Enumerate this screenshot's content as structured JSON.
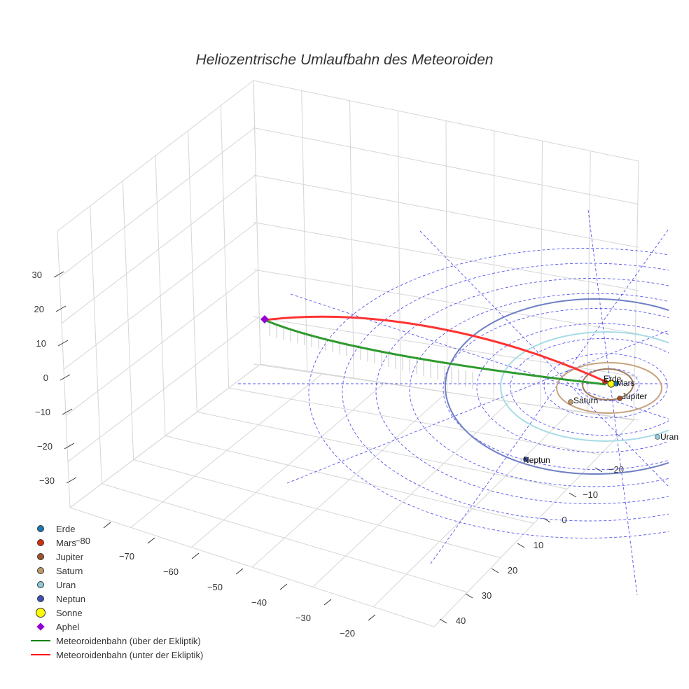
{
  "chart_data": {
    "type": "scatter3d",
    "title": "Heliozentrische Umlaufbahn des Meteoroiden",
    "axes": {
      "x": {
        "ticks": [
          "−80",
          "−70",
          "−60",
          "−50",
          "−40",
          "−30",
          "−20"
        ]
      },
      "y": {
        "ticks": [
          "−20",
          "−10",
          "0",
          "10",
          "20",
          "30",
          "40"
        ]
      },
      "z": {
        "ticks": [
          "30",
          "20",
          "10",
          "0",
          "−10",
          "−20",
          "−30"
        ]
      }
    },
    "planet_labels": [
      "Mars",
      "Erde",
      "Jupiter",
      "Saturn",
      "Uran",
      "Neptun"
    ],
    "legend": [
      {
        "label": "Erde",
        "symbol": "circle",
        "color": "#1f77b4"
      },
      {
        "label": "Mars",
        "symbol": "circle",
        "color": "#d62f0a"
      },
      {
        "label": "Jupiter",
        "symbol": "circle",
        "color": "#a0522d"
      },
      {
        "label": "Saturn",
        "symbol": "circle",
        "color": "#c19a6b"
      },
      {
        "label": "Uran",
        "symbol": "circle",
        "color": "#8ec9dc"
      },
      {
        "label": "Neptun",
        "symbol": "circle",
        "color": "#3f51b5"
      },
      {
        "label": "Sonne",
        "symbol": "circle-large",
        "color": "#ffff00"
      },
      {
        "label": "Aphel",
        "symbol": "diamond",
        "color": "#9400d3"
      },
      {
        "label": "Meteoroidenbahn (über der Ekliptik)",
        "symbol": "line",
        "color": "#008000"
      },
      {
        "label": "Meteoroidenbahn (unter der Ekliptik)",
        "symbol": "line",
        "color": "#ff0000"
      }
    ]
  }
}
